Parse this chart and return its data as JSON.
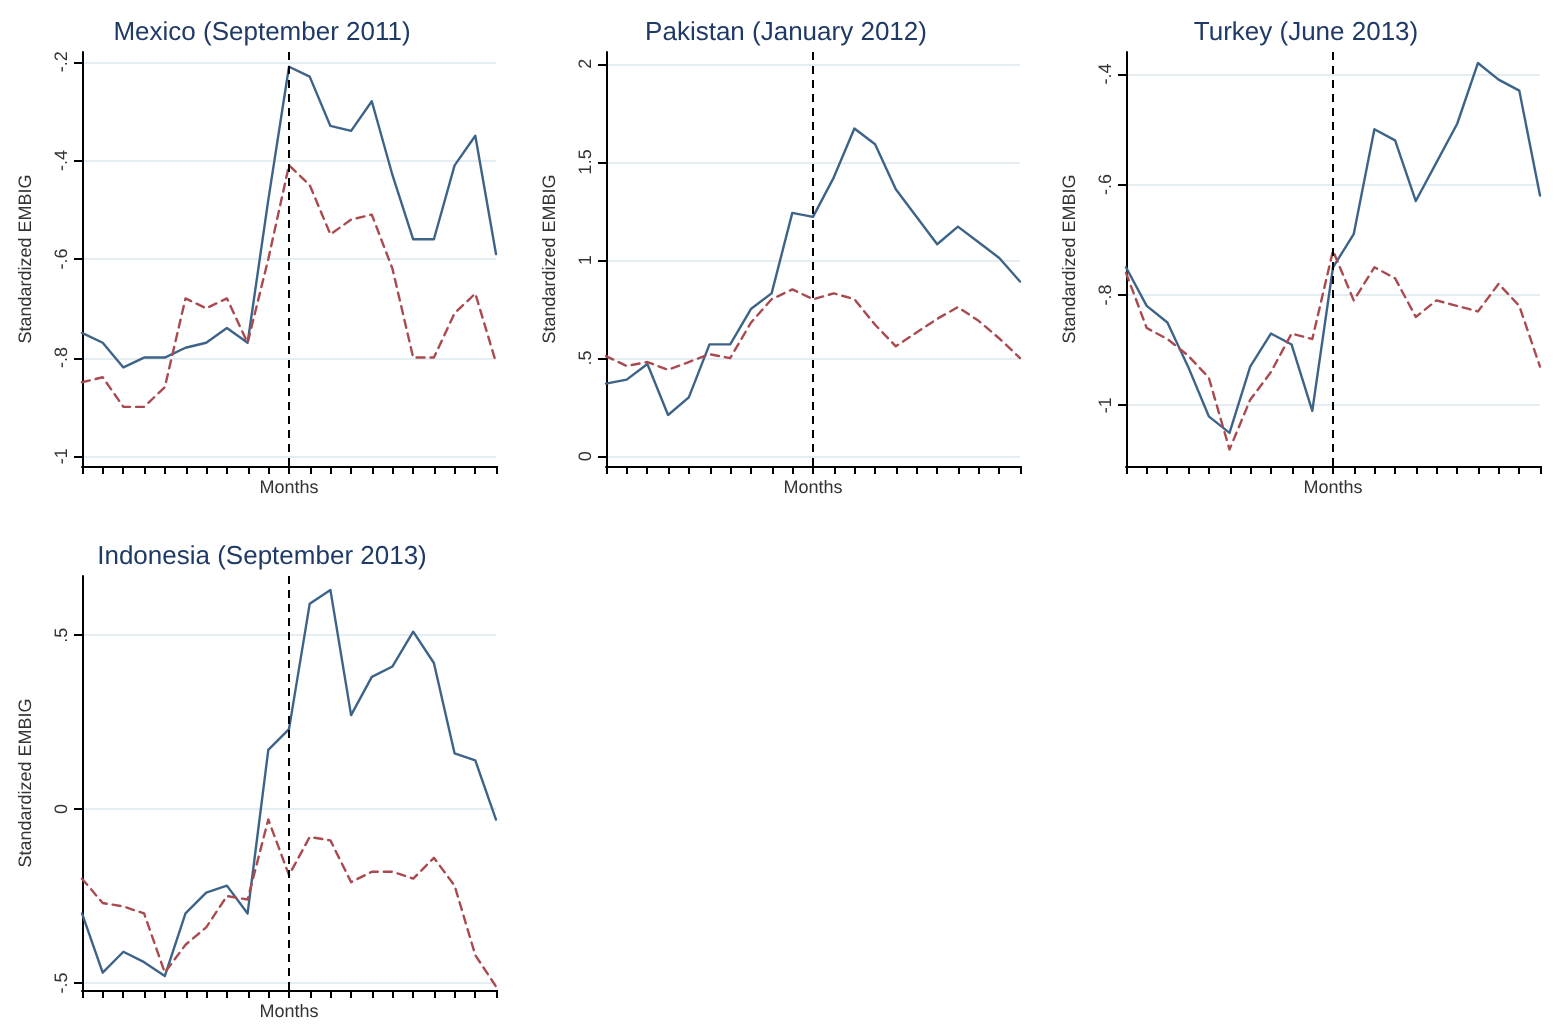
{
  "chart_data": [
    {
      "type": "line",
      "title": "Mexico (September 2011)",
      "xlabel": "Months",
      "ylabel": "Standardized EMBIG",
      "categories": [
        null,
        null,
        null,
        null,
        null,
        null,
        null,
        null,
        null,
        null,
        null,
        null,
        null,
        null,
        null,
        null,
        null,
        null,
        null,
        null,
        null
      ],
      "ylim": [
        -1.02,
        -0.18
      ],
      "yticks": [
        {
          "value": -1,
          "label": "-1"
        },
        {
          "value": -0.8,
          "label": "-.8"
        },
        {
          "value": -0.6,
          "label": "-.6"
        },
        {
          "value": -0.4,
          "label": "-.4"
        },
        {
          "value": -0.2,
          "label": "-.2"
        }
      ],
      "tick_labels": "y",
      "grid": "y",
      "marker": "none",
      "series": [
        {
          "color": "#3d6488",
          "line_style": "solid",
          "values": [
            -0.75,
            -0.77,
            -0.82,
            -0.8,
            -0.8,
            -0.78,
            -0.77,
            -0.74,
            -0.77,
            -0.48,
            -0.21,
            -0.23,
            -0.33,
            -0.34,
            -0.28,
            -0.43,
            -0.56,
            -0.56,
            -0.41,
            -0.35,
            -0.59
          ]
        },
        {
          "color": "#a84a4f",
          "line_style": "dashed",
          "values": [
            -0.85,
            -0.84,
            -0.9,
            -0.9,
            -0.86,
            -0.68,
            -0.7,
            -0.68,
            -0.77,
            -0.6,
            -0.41,
            -0.45,
            -0.55,
            -0.52,
            -0.51,
            -0.62,
            -0.8,
            -0.8,
            -0.71,
            -0.67,
            -0.81
          ]
        }
      ]
    },
    {
      "type": "line",
      "title": "Pakistan (January 2012)",
      "xlabel": "Months",
      "ylabel": "Standardized EMBIG",
      "categories": [
        null,
        null,
        null,
        null,
        null,
        null,
        null,
        null,
        null,
        null,
        null,
        null,
        null,
        null,
        null,
        null,
        null,
        null,
        null,
        null,
        null
      ],
      "ylim": [
        -0.05,
        2.06
      ],
      "yticks": [
        0,
        {
          "value": 0.5,
          "label": ".5"
        },
        1,
        1.5,
        2
      ],
      "tick_labels": "y",
      "grid": "y",
      "marker": "none",
      "series": [
        {
          "color": "#3d6488",
          "line_style": "solid",
          "values": [
            0.37,
            0.39,
            0.47,
            0.21,
            0.3,
            0.57,
            0.57,
            0.75,
            0.83,
            1.24,
            1.22,
            1.42,
            1.67,
            1.59,
            1.36,
            1.22,
            1.08,
            1.17,
            1.09,
            1.01,
            0.89
          ]
        },
        {
          "color": "#a84a4f",
          "line_style": "dashed",
          "values": [
            0.51,
            0.46,
            0.48,
            0.44,
            0.48,
            0.52,
            0.5,
            0.68,
            0.8,
            0.85,
            0.8,
            0.83,
            0.8,
            0.67,
            0.56,
            0.63,
            0.7,
            0.76,
            0.69,
            0.6,
            0.5
          ]
        }
      ]
    },
    {
      "type": "line",
      "title": "Turkey (June 2013)",
      "xlabel": "Months",
      "ylabel": "Standardized EMBIG",
      "categories": [
        null,
        null,
        null,
        null,
        null,
        null,
        null,
        null,
        null,
        null,
        null,
        null,
        null,
        null,
        null,
        null,
        null,
        null,
        null,
        null,
        null
      ],
      "ylim": [
        -1.11,
        -0.36
      ],
      "yticks": [
        {
          "value": -1,
          "label": "-1"
        },
        {
          "value": -0.8,
          "label": "-.8"
        },
        {
          "value": -0.6,
          "label": "-.6"
        },
        {
          "value": -0.4,
          "label": "-.4"
        }
      ],
      "tick_labels": "y",
      "grid": "y",
      "marker": "none",
      "series": [
        {
          "color": "#3d6488",
          "line_style": "solid",
          "values": [
            -0.75,
            -0.82,
            -0.85,
            -0.93,
            -1.02,
            -1.05,
            -0.93,
            -0.87,
            -0.89,
            -1.01,
            -0.75,
            -0.69,
            -0.5,
            -0.52,
            -0.63,
            -0.56,
            -0.49,
            -0.38,
            -0.41,
            -0.43,
            -0.62
          ]
        },
        {
          "color": "#a84a4f",
          "line_style": "dashed",
          "values": [
            -0.76,
            -0.86,
            -0.88,
            -0.91,
            -0.95,
            -1.08,
            -0.99,
            -0.94,
            -0.87,
            -0.88,
            -0.72,
            -0.81,
            -0.75,
            -0.77,
            -0.84,
            -0.81,
            -0.82,
            -0.83,
            -0.78,
            -0.82,
            -0.93
          ]
        }
      ]
    },
    {
      "type": "line",
      "title": "Indonesia (September 2013)",
      "xlabel": "Months",
      "ylabel": "Standardized EMBIG",
      "categories": [
        null,
        null,
        null,
        null,
        null,
        null,
        null,
        null,
        null,
        null,
        null,
        null,
        null,
        null,
        null,
        null,
        null,
        null,
        null,
        null,
        null
      ],
      "ylim": [
        -0.52,
        0.67
      ],
      "yticks": [
        {
          "value": -0.5,
          "label": "-.5"
        },
        0,
        {
          "value": 0.5,
          "label": ".5"
        }
      ],
      "tick_labels": "y",
      "grid": "y",
      "marker": "none",
      "series": [
        {
          "color": "#3d6488",
          "line_style": "solid",
          "values": [
            -0.3,
            -0.47,
            -0.41,
            -0.44,
            -0.48,
            -0.3,
            -0.24,
            -0.22,
            -0.3,
            0.17,
            0.23,
            0.59,
            0.63,
            0.27,
            0.38,
            0.41,
            0.51,
            0.42,
            0.16,
            0.14,
            -0.03
          ]
        },
        {
          "color": "#a84a4f",
          "line_style": "dashed",
          "values": [
            -0.2,
            -0.27,
            -0.28,
            -0.3,
            -0.47,
            -0.39,
            -0.34,
            -0.25,
            -0.26,
            -0.03,
            -0.19,
            -0.08,
            -0.09,
            -0.21,
            -0.18,
            -0.18,
            -0.2,
            -0.14,
            -0.22,
            -0.42,
            -0.51
          ]
        }
      ]
    }
  ]
}
